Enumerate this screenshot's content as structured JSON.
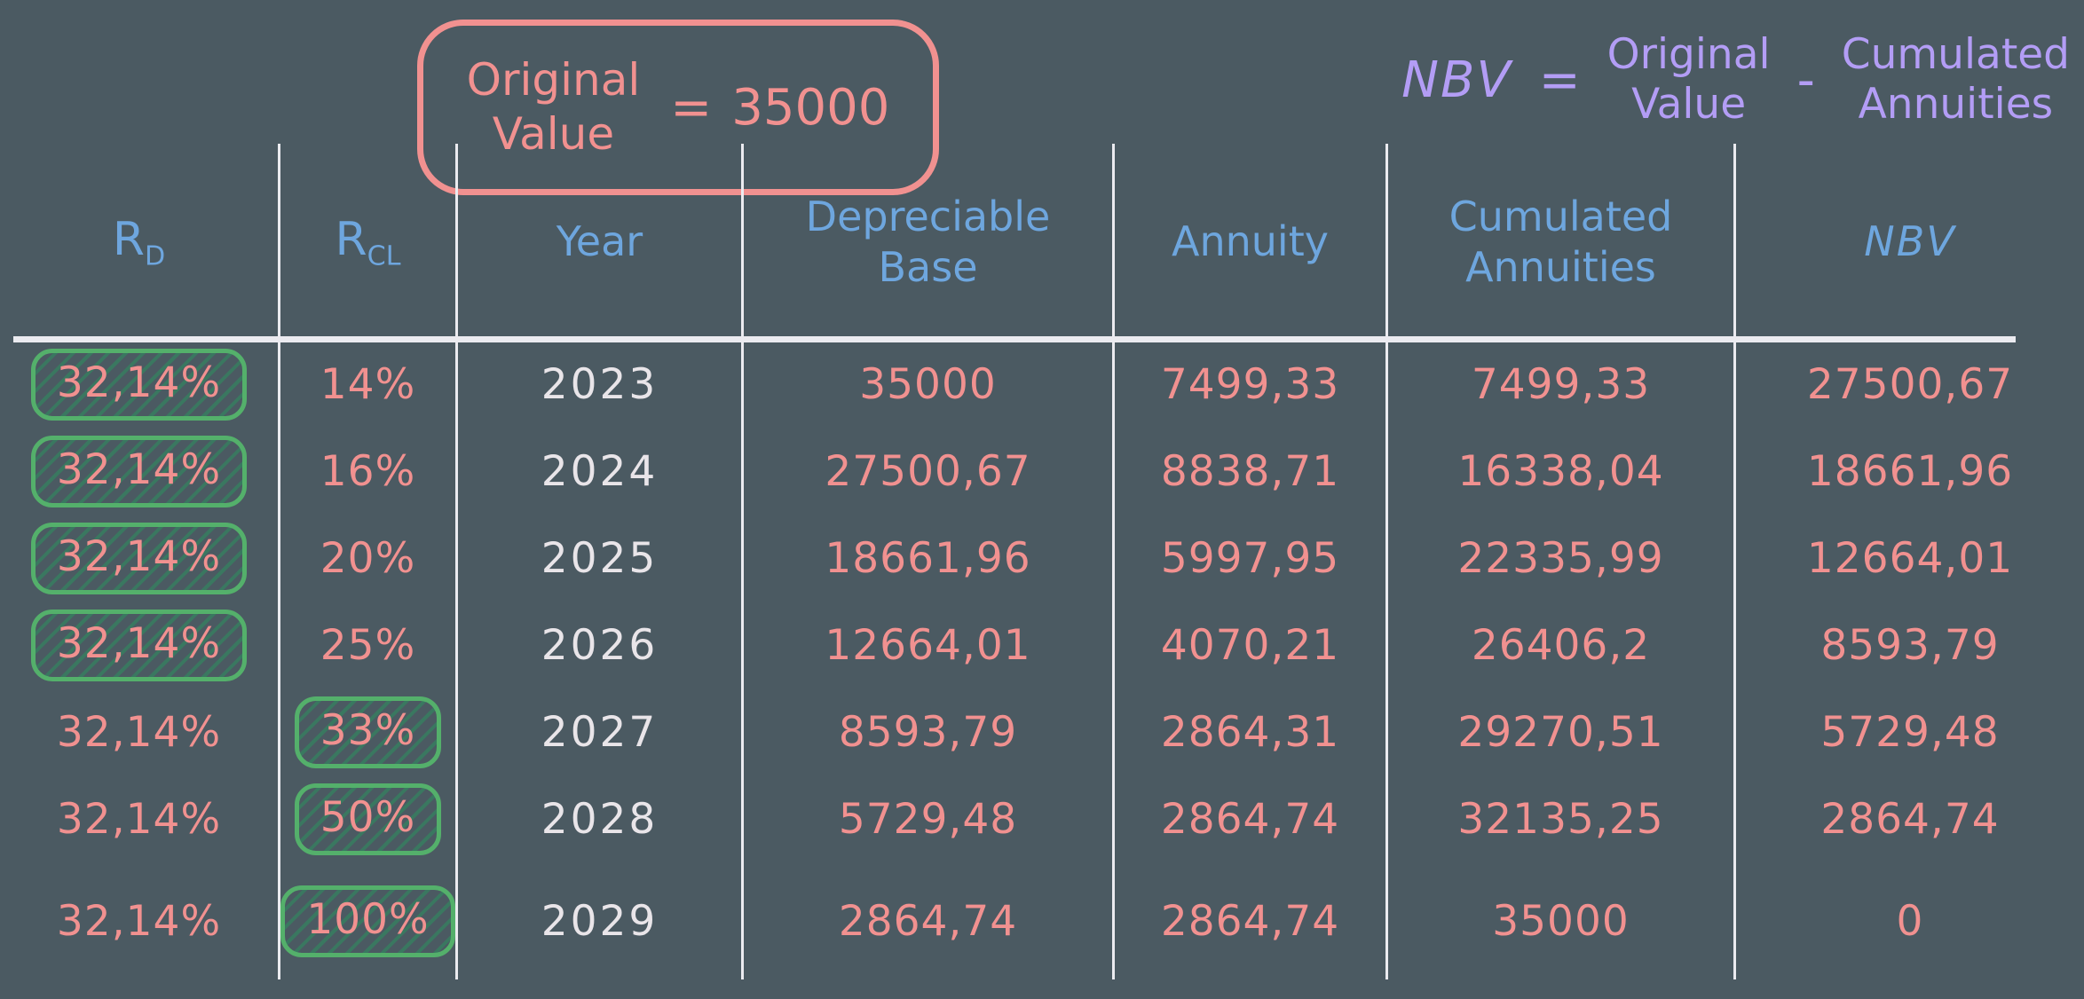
{
  "colors": {
    "background": "#4b5a62",
    "salmon": "#f19190",
    "blue": "#6ea6de",
    "purple": "#b39df5",
    "white_text": "#e9e5e9",
    "line": "#ebebf0",
    "green_border": "#54b06b",
    "green_hatch": "#2e8b5f99"
  },
  "original_value_box": {
    "label_line1": "Original",
    "label_line2": "Value",
    "equals": "=",
    "value": "35000"
  },
  "nbv_formula": {
    "lhs": "NBV",
    "equals": "=",
    "minuend_line1": "Original",
    "minuend_line2": "Value",
    "minus": "-",
    "subtrahend_line1": "Cumulated",
    "subtrahend_line2": "Annuities"
  },
  "table": {
    "headers": {
      "rd_base": "R",
      "rd_sub": "D",
      "rcl_base": "R",
      "rcl_sub": "CL",
      "year": "Year",
      "depreciable_base": "Depreciable Base",
      "annuity": "Annuity",
      "cumulated_annuities": "Cumulated Annuities",
      "nbv": "NBV"
    },
    "rows": [
      {
        "rd": "32,14%",
        "rd_highlight": true,
        "rcl": "14%",
        "rcl_highlight": false,
        "year": "2023",
        "base": "35000",
        "annuity": "7499,33",
        "cumulated": "7499,33",
        "nbv": "27500,67"
      },
      {
        "rd": "32,14%",
        "rd_highlight": true,
        "rcl": "16%",
        "rcl_highlight": false,
        "year": "2024",
        "base": "27500,67",
        "annuity": "8838,71",
        "cumulated": "16338,04",
        "nbv": "18661,96"
      },
      {
        "rd": "32,14%",
        "rd_highlight": true,
        "rcl": "20%",
        "rcl_highlight": false,
        "year": "2025",
        "base": "18661,96",
        "annuity": "5997,95",
        "cumulated": "22335,99",
        "nbv": "12664,01"
      },
      {
        "rd": "32,14%",
        "rd_highlight": true,
        "rcl": "25%",
        "rcl_highlight": false,
        "year": "2026",
        "base": "12664,01",
        "annuity": "4070,21",
        "cumulated": "26406,2",
        "nbv": "8593,79"
      },
      {
        "rd": "32,14%",
        "rd_highlight": false,
        "rcl": "33%",
        "rcl_highlight": true,
        "year": "2027",
        "base": "8593,79",
        "annuity": "2864,31",
        "cumulated": "29270,51",
        "nbv": "5729,48"
      },
      {
        "rd": "32,14%",
        "rd_highlight": false,
        "rcl": "50%",
        "rcl_highlight": true,
        "year": "2028",
        "base": "5729,48",
        "annuity": "2864,74",
        "cumulated": "32135,25",
        "nbv": "2864,74"
      },
      {
        "rd": "32,14%",
        "rd_highlight": false,
        "rcl": "100%",
        "rcl_highlight": true,
        "year": "2029",
        "base": "2864,74",
        "annuity": "2864,74",
        "cumulated": "35000",
        "nbv": "0"
      }
    ]
  }
}
